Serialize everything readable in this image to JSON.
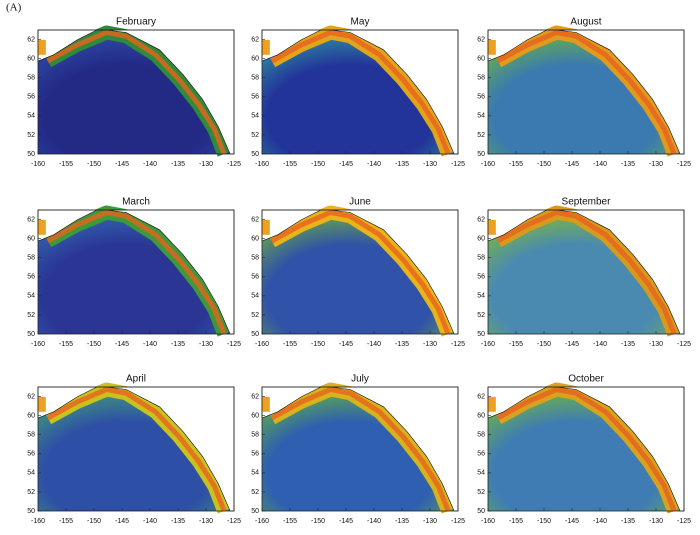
{
  "label": "(A)",
  "xlim": [
    -160,
    -125
  ],
  "ylim": [
    50,
    63
  ],
  "xticks": [
    -160,
    -155,
    -150,
    -145,
    -140,
    -135,
    -130,
    -125
  ],
  "yticks": [
    50,
    52,
    54,
    56,
    58,
    60,
    62
  ],
  "panels": [
    {
      "title": "February"
    },
    {
      "title": "March"
    },
    {
      "title": "April"
    },
    {
      "title": "May"
    },
    {
      "title": "June"
    },
    {
      "title": "July"
    },
    {
      "title": "August"
    },
    {
      "title": "September"
    },
    {
      "title": "October"
    }
  ]
}
